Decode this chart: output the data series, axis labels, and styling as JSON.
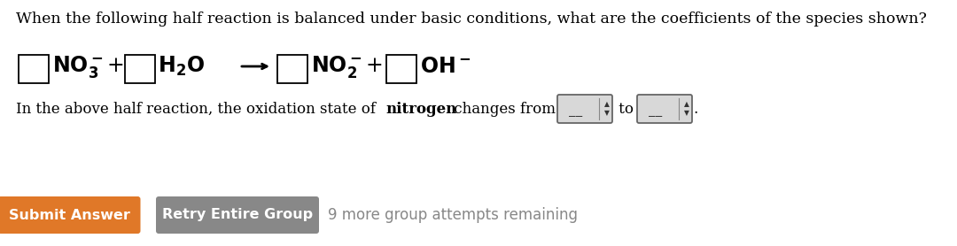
{
  "bg": "#ffffff",
  "title": "When the following half reaction is balanced under basic conditions, what are the coefficients of the species shown?",
  "submit_label": "Submit Answer",
  "submit_color": "#e07828",
  "retry_label": "Retry Entire Group",
  "retry_color": "#888888",
  "remaining": "9 more group attempts remaining",
  "remaining_color": "#888888"
}
